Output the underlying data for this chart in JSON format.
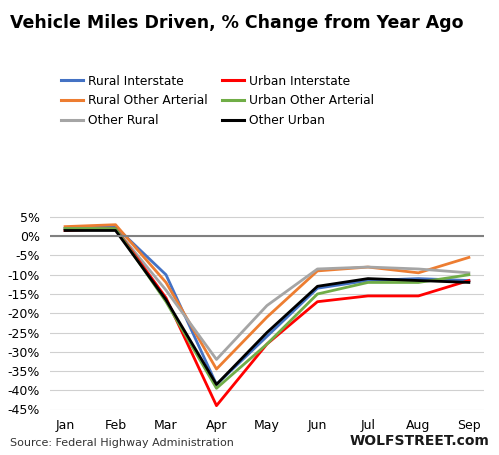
{
  "title": "Vehicle Miles Driven, % Change from Year Ago",
  "months": [
    "Jan",
    "Feb",
    "Mar",
    "Apr",
    "May",
    "Jun",
    "Jul",
    "Aug",
    "Sep"
  ],
  "legend_order": [
    "Rural Interstate",
    "Rural Other Arterial",
    "Other Rural",
    "Urban Interstate",
    "Urban Other Arterial",
    "Other Urban"
  ],
  "series": {
    "Rural Interstate": {
      "color": "#4472C4",
      "values": [
        2.0,
        2.5,
        -10.0,
        -38.5,
        -26.0,
        -13.5,
        -11.5,
        -11.0,
        -11.5
      ]
    },
    "Rural Other Arterial": {
      "color": "#ED7D31",
      "values": [
        2.5,
        3.0,
        -12.0,
        -34.5,
        -21.0,
        -9.0,
        -8.0,
        -9.5,
        -5.5
      ]
    },
    "Other Rural": {
      "color": "#A5A5A5",
      "values": [
        2.0,
        2.0,
        -14.0,
        -32.0,
        -18.0,
        -8.5,
        -8.0,
        -8.5,
        -9.5
      ]
    },
    "Urban Interstate": {
      "color": "#FF0000",
      "values": [
        1.5,
        2.0,
        -16.0,
        -44.0,
        -28.0,
        -17.0,
        -15.5,
        -15.5,
        -11.5
      ]
    },
    "Urban Other Arterial": {
      "color": "#70AD47",
      "values": [
        2.0,
        2.0,
        -17.0,
        -39.5,
        -28.0,
        -15.0,
        -12.0,
        -12.0,
        -10.0
      ]
    },
    "Other Urban": {
      "color": "#000000",
      "values": [
        1.5,
        1.5,
        -16.5,
        -38.5,
        -25.0,
        -13.0,
        -11.0,
        -11.5,
        -12.0
      ]
    }
  },
  "ylim": [
    -45,
    7
  ],
  "yticks": [
    5,
    0,
    -5,
    -10,
    -15,
    -20,
    -25,
    -30,
    -35,
    -40,
    -45
  ],
  "source_text": "Source: Federal Highway Administration",
  "watermark": "WOLFSTREET.com",
  "background_color": "#ffffff",
  "plot_bg_color": "#ffffff",
  "grid_color": "#d0d0d0",
  "zero_line_color": "#808080"
}
